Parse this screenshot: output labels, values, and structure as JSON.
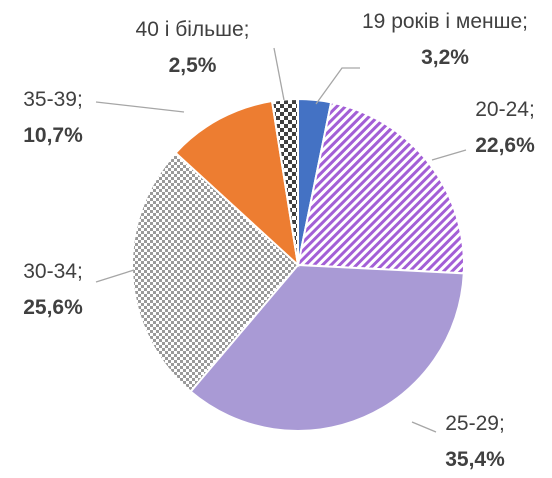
{
  "chart_data": {
    "type": "pie",
    "categories": [
      "19 років і менше",
      "20-24",
      "25-29",
      "30-34",
      "35-39",
      "40 і більше"
    ],
    "values": [
      3.2,
      22.6,
      35.4,
      25.6,
      10.7,
      2.5
    ],
    "value_labels": [
      "3,2%",
      "22,6%",
      "35,4%",
      "25,6%",
      "10,7%",
      "2,5%"
    ],
    "label_separator": ";",
    "colors": [
      "#4472c4",
      "#a35fd6",
      "#a99ad5",
      "#9a9a9a",
      "#ed7d31",
      "#404040"
    ],
    "patterns": [
      "solid",
      "diagonal",
      "solid",
      "fine-checker",
      "solid",
      "checker"
    ]
  }
}
